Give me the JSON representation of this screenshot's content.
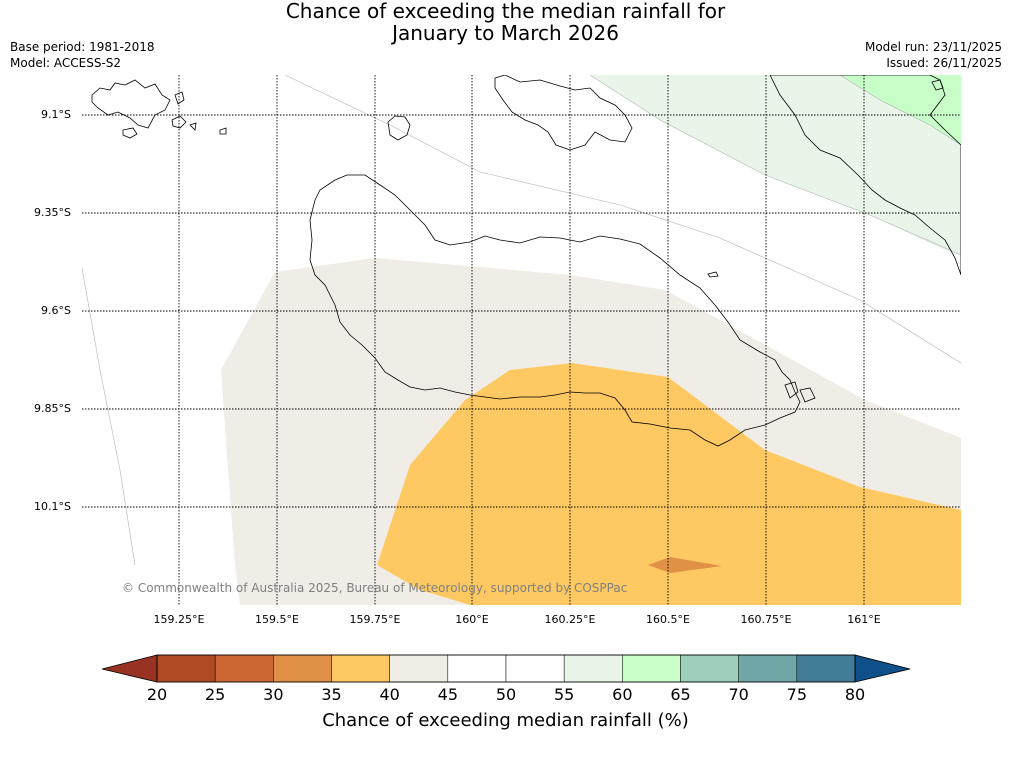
{
  "title": {
    "line1": "Chance of exceeding the median rainfall for",
    "line2": "January to March 2026"
  },
  "meta": {
    "base_period": "Base period: 1981-2018",
    "model": "Model: ACCESS-S2",
    "model_run": "Model run: 23/11/2025",
    "issued": "Issued: 26/11/2025"
  },
  "map": {
    "lat_labels": [
      "9.1°S",
      "9.35°S",
      "9.6°S",
      "9.85°S",
      "10.1°S"
    ],
    "lon_labels": [
      "159.25°E",
      "159.5°E",
      "159.75°E",
      "160°E",
      "160.25°E",
      "160.5°E",
      "160.75°E",
      "161°E"
    ],
    "copyright": "© Commonwealth of Australia 2025, Bureau of Meteorology, supported by COSPPac",
    "colors": {
      "c30_35": "#e19146",
      "c35_40": "#fec962",
      "c40_45": "#f0ece6",
      "c55_60": "#e8f5e8",
      "c60_65": "#c8fec8",
      "coast": "#000000",
      "contour": "#b3b3b3"
    }
  },
  "colorbar": {
    "ticks": [
      "20",
      "25",
      "30",
      "35",
      "40",
      "45",
      "50",
      "55",
      "60",
      "65",
      "70",
      "75",
      "80"
    ],
    "colors": [
      "#b04a25",
      "#cc6634",
      "#e19146",
      "#fec962",
      "#f0ece6",
      "#ffffff",
      "#ffffff",
      "#e8f5e8",
      "#c8fec8",
      "#9dcfbb",
      "#6fa6a6",
      "#437c99"
    ],
    "under_color": "#983222",
    "over_color": "#0f4f8a",
    "label": "Chance of exceeding median rainfall (%)"
  }
}
